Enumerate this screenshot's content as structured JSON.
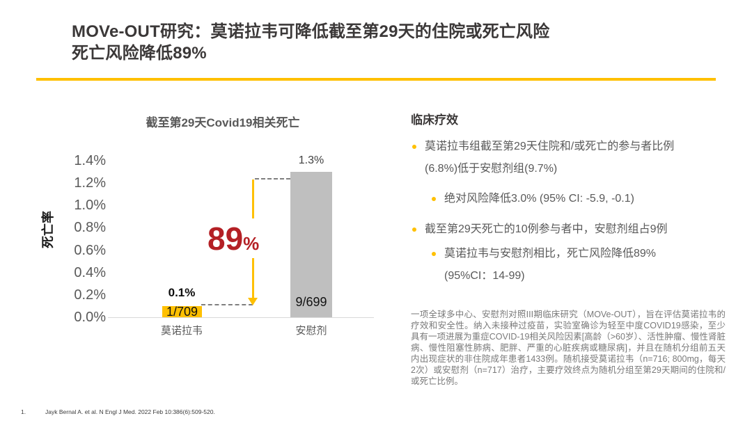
{
  "slide": {
    "title_line1": "MOVe-OUT研究：莫诺拉韦可降低截至第29天的住院或死亡风险",
    "title_line2": "死亡风险降低89%",
    "footnote_number": "1.",
    "footnote_text": "Jayk Bernal A. et al. N Engl J Med. 2022 Feb 10:386(6):509-520."
  },
  "colors": {
    "accent": "#FFC000",
    "bar_gray": "#BFBFBF",
    "reduction_red": "#B42025",
    "title_ink": "#3B3838"
  },
  "chart_data": {
    "type": "bar",
    "title": "截至第29天Covid19相关死亡",
    "xlabel": "",
    "ylabel": "死亡率",
    "ylim": [
      0,
      1.4
    ],
    "ytick_labels": [
      "1.4%",
      "1.2%",
      "1.0%",
      "0.8%",
      "0.6%",
      "0.4%",
      "0.2%",
      "0.0%"
    ],
    "grid": "off",
    "legend": "none",
    "categories": [
      "莫诺拉韦",
      "安慰剂"
    ],
    "values": [
      0.1,
      1.3
    ],
    "value_labels": [
      "0.1%",
      "1.3%"
    ],
    "count_labels": [
      "1/709",
      "9/699"
    ],
    "bar_colors": [
      "#FFC000",
      "#BFBFBF"
    ],
    "annotation": {
      "reduction_value": "89",
      "reduction_unit": "%"
    }
  },
  "clinical": {
    "heading": "临床疗效",
    "bullets": [
      {
        "level": 1,
        "lines": [
          "莫诺拉韦组截至第29天住院和/或死亡的参与者比例",
          "(6.8%)低于安慰剂组(9.7%)"
        ]
      },
      {
        "level": 2,
        "lines": [
          "绝对风险降低3.0% (95% CI: -5.9, -0.1)"
        ]
      },
      {
        "level": 1,
        "lines": [
          "截至第29天死亡的10例参与者中，安慰剂组占9例"
        ]
      },
      {
        "level": 2,
        "lines": [
          "莫诺拉韦与安慰剂相比，死亡风险降低89%",
          "(95%CI：14-99)"
        ]
      }
    ],
    "study_description": "一项全球多中心、安慰剂对照III期临床研究（MOVe-OUT），旨在评估莫诺拉韦的疗效和安全性。纳入未接种过疫苗，实验室确诊为轻至中度COVID19感染，至少具有一项进展为重症COVID-19相关风险因素[高龄（>60岁）、活性肿瘤、慢性肾脏病、慢性阻塞性肺病、肥胖、严重的心脏疾病或糖尿病]，并且在随机分组前五天内出现症状的非住院成年患者1433例。随机接受莫诺拉韦（n=716; 800mg，每天2次）或安慰剂（n=717）治疗，主要疗效终点为随机分组至第29天期间的住院和/或死亡比例。"
  }
}
